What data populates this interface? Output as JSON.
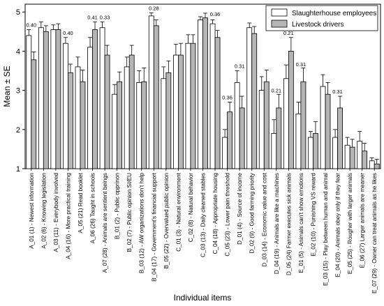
{
  "chart_data": {
    "type": "bar",
    "title": "",
    "xlabel": "Individual items",
    "ylabel": "Mean ± SE",
    "ylim": [
      1,
      5.2
    ],
    "yticks": [
      1,
      2,
      3,
      4,
      5
    ],
    "grid": false,
    "legend_position": "top-right",
    "categories": [
      "A_01 (1) - Newest information",
      "A_02 (6) - Knowing legislation",
      "A_03 (11) - Everybody involved",
      "A_04 (16) - More practical training",
      "A_05 (21) Read booklet",
      "A_06 (26) Taught in schools",
      "A_07 (28) - Animals are sentient beings",
      "B_01 (2) - Public opprinon",
      "B_02 (7) - Public opinion SI/EU",
      "B_03 (12) - AW organizations don't help",
      "B_04 (17) - Government's financial support",
      "B_05 (22) - Overvalued public opinion",
      "C_01 (3) - Natural environment",
      "C_02 (8) - Natural behavior",
      "C_03 (13) - Daily cleaned stables",
      "C_04 (18) - Appropriate housing",
      "C_05 (23) - Lower pain threshold",
      "D_01 (4) - Source of income",
      "D_02 (9) - Good farming priority",
      "D_03 (14) - Economic value and cost",
      "D_04 (19) - Animals are like a machines",
      "D_05 (24) Farmer executes sick animals",
      "E_01 (5) - Animals can't show emotions",
      "E_02 (10) - Punishing VS reward",
      "E_03 (15) - Play between human and animal",
      "E_04 (20) - Animals obey only if they fear",
      "E_05 (25) - Rougher with larger animals",
      "E_06 (27) Larger animals are meaner",
      "E_07 (29) - Owner can treat animals as he likes"
    ],
    "series": [
      {
        "name": "Slaughterhouse employees",
        "color": "#ffffff",
        "values": [
          4.4,
          4.6,
          4.55,
          4.2,
          3.6,
          4.1,
          4.6,
          2.9,
          3.6,
          3.2,
          4.9,
          3.3,
          3.9,
          4.2,
          4.8,
          4.7,
          1.8,
          3.2,
          4.6,
          3.0,
          1.9,
          3.3,
          2.4,
          1.8,
          3.1,
          1.8,
          1.6,
          1.7,
          1.2
        ],
        "errors": [
          0.15,
          0.15,
          0.12,
          0.15,
          0.25,
          0.25,
          0.15,
          0.25,
          0.25,
          0.3,
          0.08,
          0.3,
          0.28,
          0.22,
          0.08,
          0.1,
          0.2,
          0.3,
          0.12,
          0.35,
          0.35,
          0.35,
          0.3,
          0.15,
          0.3,
          0.2,
          0.2,
          0.25,
          0.08
        ]
      },
      {
        "name": "Livestock drivers",
        "color": "#b5b5b5",
        "values": [
          3.78,
          4.5,
          4.55,
          3.45,
          3.22,
          4.55,
          3.9,
          3.22,
          3.9,
          3.22,
          4.65,
          3.45,
          3.9,
          4.2,
          4.85,
          4.35,
          2.45,
          2.55,
          4.45,
          3.22,
          2.55,
          4.0,
          3.22,
          1.9,
          2.9,
          2.55,
          1.55,
          1.45,
          1.12
        ],
        "errors": [
          0.2,
          0.15,
          0.15,
          0.22,
          0.3,
          0.2,
          0.25,
          0.25,
          0.25,
          0.35,
          0.15,
          0.3,
          0.3,
          0.22,
          0.12,
          0.18,
          0.25,
          0.3,
          0.18,
          0.3,
          0.35,
          0.35,
          0.35,
          0.3,
          0.3,
          0.3,
          0.2,
          0.2,
          0.12
        ]
      }
    ],
    "annotations": [
      {
        "category_index": 0,
        "text": "0.40",
        "y": 4.62
      },
      {
        "category_index": 3,
        "text": "0.40",
        "y": 4.42
      },
      {
        "category_index": 5,
        "text": "0.41",
        "y": 4.82
      },
      {
        "category_index": 6,
        "text": "0.33",
        "y": 4.82
      },
      {
        "category_index": 10,
        "text": "0.28",
        "y": 5.05
      },
      {
        "category_index": 15,
        "text": "0.36",
        "y": 4.9
      },
      {
        "category_index": 16,
        "text": "0.36",
        "y": 2.77
      },
      {
        "category_index": 17,
        "text": "0.31",
        "y": 3.57
      },
      {
        "category_index": 20,
        "text": "0.21",
        "y": 2.95
      },
      {
        "category_index": 21,
        "text": "0.21",
        "y": 4.42
      },
      {
        "category_index": 22,
        "text": "0.31",
        "y": 3.62
      },
      {
        "category_index": 25,
        "text": "0.31",
        "y": 2.92
      }
    ]
  }
}
